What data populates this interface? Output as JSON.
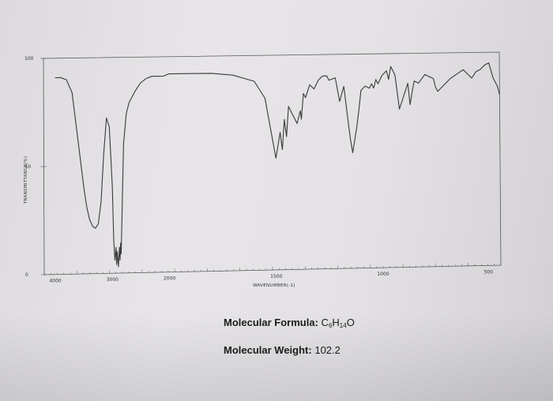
{
  "chart_data": {
    "type": "line",
    "ylabel": "TRANSMITTANCE(%)",
    "xlabel": "WAVENUMBER(-1)",
    "x_ticks": [
      "4000",
      "3000",
      "2000",
      "1500",
      "1000",
      "500"
    ],
    "y_ticks": [
      "100",
      "50",
      "0"
    ],
    "xlim": [
      4000,
      450
    ],
    "ylim": [
      0,
      100
    ],
    "x": [
      4000,
      3900,
      3800,
      3700,
      3600,
      3500,
      3450,
      3400,
      3350,
      3300,
      3250,
      3200,
      3150,
      3100,
      3050,
      3000,
      2980,
      2960,
      2940,
      2930,
      2920,
      2900,
      2880,
      2870,
      2860,
      2850,
      2800,
      2750,
      2700,
      2600,
      2500,
      2400,
      2300,
      2200,
      2100,
      2000,
      1900,
      1800,
      1700,
      1600,
      1550,
      1500,
      1480,
      1470,
      1460,
      1450,
      1440,
      1420,
      1400,
      1385,
      1380,
      1370,
      1360,
      1340,
      1320,
      1300,
      1280,
      1260,
      1250,
      1220,
      1200,
      1180,
      1160,
      1150,
      1140,
      1120,
      1110,
      1100,
      1080,
      1060,
      1050,
      1040,
      1030,
      1020,
      1000,
      980,
      970,
      960,
      950,
      940,
      920,
      900,
      880,
      870,
      860,
      850,
      830,
      800,
      780,
      760,
      750,
      740,
      720,
      700,
      680,
      650,
      620,
      600,
      580,
      560,
      540,
      520,
      500,
      480,
      460,
      450
    ],
    "y": [
      91,
      91,
      90,
      84,
      62,
      40,
      31,
      25,
      22,
      21,
      23,
      33,
      55,
      72,
      68,
      40,
      15,
      6,
      12,
      4,
      10,
      3,
      12,
      6,
      14,
      9,
      60,
      74,
      79,
      84,
      88,
      90,
      91,
      91,
      91,
      92,
      92,
      92,
      91,
      88,
      80,
      52,
      64,
      56,
      70,
      62,
      76,
      72,
      68,
      74,
      70,
      82,
      80,
      86,
      84,
      88,
      90,
      90,
      88,
      89,
      78,
      85,
      68,
      60,
      54,
      66,
      74,
      83,
      85,
      84,
      86,
      84,
      88,
      86,
      90,
      92,
      88,
      94,
      92,
      90,
      74,
      80,
      86,
      76,
      82,
      87,
      86,
      90,
      89,
      88,
      84,
      82,
      84,
      86,
      88,
      90,
      92,
      90,
      88,
      91,
      92,
      94,
      95,
      88,
      84,
      80
    ],
    "grid": false
  },
  "molecule": {
    "formula_label": "Molecular Formula:",
    "formula_c": "C",
    "formula_c_count": "6",
    "formula_h": "H",
    "formula_h_count": "14",
    "formula_o": "O",
    "weight_label": "Molecular Weight:",
    "weight_value": "102.2"
  }
}
